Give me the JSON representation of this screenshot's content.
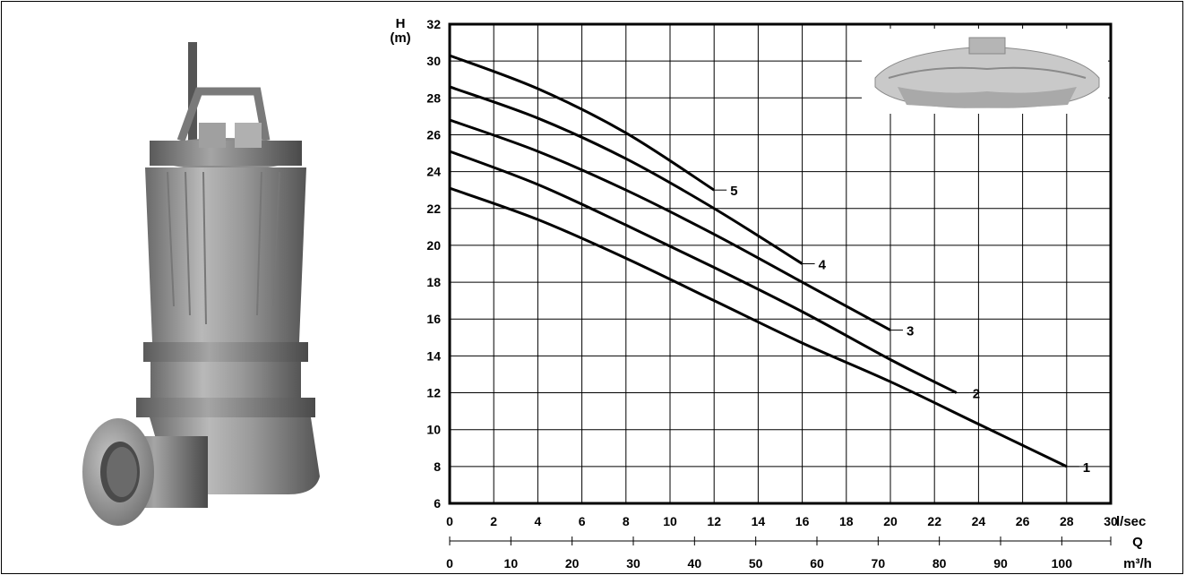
{
  "chart_data": {
    "type": "line",
    "ylabel": "H",
    "yunit": "(m)",
    "xlabel_primary": "l/sec",
    "xlabel_secondary_name": "Q",
    "xlabel_secondary": "m³/h",
    "ylim": [
      6,
      32
    ],
    "xlim": [
      0,
      30
    ],
    "x2lim": [
      0,
      108
    ],
    "y_ticks": [
      "6",
      "8",
      "10",
      "12",
      "14",
      "16",
      "18",
      "20",
      "22",
      "24",
      "26",
      "28",
      "30",
      "32"
    ],
    "x_ticks": [
      "0",
      "2",
      "4",
      "6",
      "8",
      "10",
      "12",
      "14",
      "16",
      "18",
      "20",
      "22",
      "24",
      "26",
      "28",
      "30"
    ],
    "x2_ticks": [
      "0",
      "10",
      "20",
      "30",
      "40",
      "50",
      "60",
      "70",
      "80",
      "90",
      "100"
    ],
    "grid": true,
    "series": [
      {
        "name": "1",
        "x": [
          0,
          4,
          8,
          12,
          16,
          20,
          24,
          28
        ],
        "y": [
          23.1,
          21.4,
          19.3,
          17.0,
          14.7,
          12.6,
          10.3,
          8.0
        ]
      },
      {
        "name": "2",
        "x": [
          0,
          4,
          8,
          12,
          16,
          20,
          23
        ],
        "y": [
          25.1,
          23.3,
          21.1,
          18.8,
          16.4,
          13.8,
          12.0
        ]
      },
      {
        "name": "3",
        "x": [
          0,
          4,
          8,
          12,
          16,
          20
        ],
        "y": [
          26.8,
          25.1,
          23.0,
          20.6,
          18.0,
          15.4
        ]
      },
      {
        "name": "4",
        "x": [
          0,
          4,
          8,
          12,
          16
        ],
        "y": [
          28.6,
          26.9,
          24.7,
          22.0,
          19.0
        ]
      },
      {
        "name": "5",
        "x": [
          0,
          4,
          8,
          12
        ],
        "y": [
          30.3,
          28.5,
          26.1,
          23.0
        ]
      }
    ]
  }
}
